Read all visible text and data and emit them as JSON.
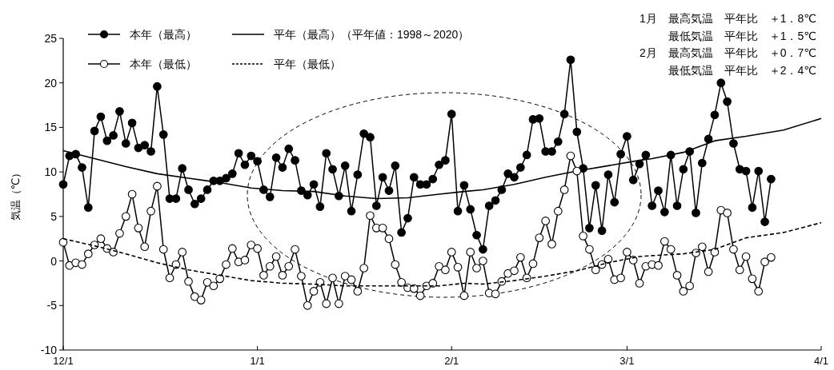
{
  "chart_data": {
    "type": "line",
    "ylabel": "気温（℃）",
    "legend": "top left",
    "x": [
      "2020-12-01",
      "2020-12-02",
      "2020-12-03",
      "2020-12-04",
      "2020-12-05",
      "2020-12-06",
      "2020-12-07",
      "2020-12-08",
      "2020-12-09",
      "2020-12-10",
      "2020-12-11",
      "2020-12-12",
      "2020-12-13",
      "2020-12-14",
      "2020-12-15",
      "2020-12-16",
      "2020-12-17",
      "2020-12-18",
      "2020-12-19",
      "2020-12-20",
      "2020-12-21",
      "2020-12-22",
      "2020-12-23",
      "2020-12-24",
      "2020-12-25",
      "2020-12-26",
      "2020-12-27",
      "2020-12-28",
      "2020-12-29",
      "2020-12-30",
      "2020-12-31",
      "2021-01-01",
      "2021-01-02",
      "2021-01-03",
      "2021-01-04",
      "2021-01-05",
      "2021-01-06",
      "2021-01-07",
      "2021-01-08",
      "2021-01-09",
      "2021-01-10",
      "2021-01-11",
      "2021-01-12",
      "2021-01-13",
      "2021-01-14",
      "2021-01-15",
      "2021-01-16",
      "2021-01-17",
      "2021-01-18",
      "2021-01-19",
      "2021-01-20",
      "2021-01-21",
      "2021-01-22",
      "2021-01-23",
      "2021-01-24",
      "2021-01-25",
      "2021-01-26",
      "2021-01-27",
      "2021-01-28",
      "2021-01-29",
      "2021-01-30",
      "2021-01-31",
      "2021-02-01",
      "2021-02-02",
      "2021-02-03",
      "2021-02-04",
      "2021-02-05",
      "2021-02-06",
      "2021-02-07",
      "2021-02-08",
      "2021-02-09",
      "2021-02-10",
      "2021-02-11",
      "2021-02-12",
      "2021-02-13",
      "2021-02-14",
      "2021-02-15",
      "2021-02-16",
      "2021-02-17",
      "2021-02-18",
      "2021-02-19",
      "2021-02-20",
      "2021-02-21",
      "2021-02-22",
      "2021-02-23",
      "2021-02-24",
      "2021-02-25",
      "2021-02-26",
      "2021-02-27",
      "2021-02-28",
      "2021-03-01",
      "2021-03-02",
      "2021-03-03",
      "2021-03-04",
      "2021-03-05",
      "2021-03-06",
      "2021-03-07",
      "2021-03-08",
      "2021-03-09",
      "2021-03-10",
      "2021-03-11",
      "2021-03-12",
      "2021-03-13",
      "2021-03-14",
      "2021-03-15",
      "2021-03-16",
      "2021-03-17",
      "2021-03-18",
      "2021-03-19",
      "2021-03-20",
      "2021-03-21",
      "2021-03-22",
      "2021-03-23",
      "2021-03-24"
    ],
    "series": [
      {
        "name": "本年（最高）",
        "color": "#000000",
        "marker": "circle",
        "line_style": "solid",
        "values": [
          8.6,
          11.8,
          12.0,
          10.5,
          6.0,
          14.6,
          16.2,
          13.5,
          14.1,
          16.8,
          13.2,
          15.5,
          12.7,
          13.0,
          12.3,
          19.6,
          14.2,
          7.0,
          7.0,
          10.4,
          8.0,
          6.4,
          7.0,
          8.0,
          9.0,
          9.0,
          9.3,
          9.8,
          12.1,
          10.8,
          11.8,
          11.2,
          8.0,
          7.2,
          11.6,
          10.5,
          12.6,
          11.3,
          7.9,
          7.4,
          8.6,
          6.1,
          12.1,
          10.3,
          7.3,
          10.7,
          5.6,
          9.7,
          14.3,
          13.9,
          6.2,
          9.4,
          7.9,
          10.7,
          3.2,
          4.8,
          9.4,
          8.6,
          8.6,
          9.2,
          10.8,
          11.3,
          16.5,
          5.6,
          8.5,
          5.8,
          2.9,
          1.3,
          6.2,
          6.8,
          8.0,
          9.8,
          9.4,
          10.5,
          11.9,
          15.9,
          16.0,
          12.3,
          12.3,
          13.4,
          16.5,
          22.6,
          14.5,
          10.4,
          3.7,
          8.5,
          3.4,
          9.7,
          6.6,
          12.0,
          14.0,
          9.1,
          10.9,
          11.9,
          6.2,
          7.9,
          5.5,
          11.9,
          6.2,
          10.3,
          12.3,
          5.4,
          11.0,
          13.7,
          16.4,
          20.0,
          17.9,
          13.2,
          10.3,
          10.1,
          6.0,
          10.1,
          4.4,
          9.2
        ]
      },
      {
        "name": "平年（最高）（平年値：1998～2020）",
        "color": "#000000",
        "marker": "none",
        "line_style": "solid",
        "x": [
          "2020-12-01",
          "2020-12-06",
          "2020-12-11",
          "2020-12-16",
          "2020-12-21",
          "2020-12-26",
          "2020-12-31",
          "2021-01-05",
          "2021-01-10",
          "2021-01-15",
          "2021-01-20",
          "2021-01-25",
          "2021-01-30",
          "2021-02-03",
          "2021-02-06",
          "2021-02-11",
          "2021-02-16",
          "2021-02-21",
          "2021-02-26",
          "2021-03-03",
          "2021-03-05",
          "2021-03-10",
          "2021-03-15",
          "2021-03-20",
          "2021-03-26",
          "2021-04-01"
        ],
        "values": [
          12.4,
          11.5,
          10.6,
          9.8,
          9.3,
          8.8,
          8.2,
          7.9,
          7.8,
          7.3,
          7.0,
          7.1,
          7.5,
          7.8,
          8.0,
          8.6,
          9.4,
          10.1,
          10.7,
          11.3,
          11.5,
          12.2,
          13.5,
          14.0,
          14.7,
          16.0
        ]
      },
      {
        "name": "本年（最低）",
        "color": "#ffffff",
        "marker": "circle",
        "line_style": "solid",
        "values": [
          2.1,
          -0.5,
          -0.2,
          -0.4,
          0.8,
          1.8,
          2.5,
          1.4,
          1.0,
          3.1,
          5.0,
          7.5,
          3.7,
          1.6,
          5.6,
          8.4,
          1.3,
          -1.9,
          -0.4,
          1.0,
          -2.3,
          -4.0,
          -4.4,
          -2.4,
          -2.8,
          -2.0,
          -0.4,
          1.4,
          -0.1,
          0.1,
          1.8,
          1.4,
          -1.6,
          -0.6,
          0.5,
          -1.6,
          -0.6,
          1.3,
          -1.7,
          -5.0,
          -3.4,
          -2.4,
          -4.8,
          -1.9,
          -4.8,
          -1.7,
          -2.1,
          -3.4,
          -0.8,
          5.1,
          3.7,
          3.7,
          2.5,
          -0.4,
          -2.4,
          -3.0,
          -3.1,
          -3.9,
          -2.8,
          -2.5,
          -0.6,
          -1.0,
          1.0,
          -0.7,
          -3.9,
          1.0,
          -0.8,
          0.0,
          -3.6,
          -3.7,
          -2.3,
          -1.4,
          -1.1,
          0.4,
          -1.9,
          -0.3,
          2.6,
          4.5,
          1.9,
          5.6,
          8.0,
          11.8,
          10.1,
          2.8,
          1.3,
          -1.0,
          -0.4,
          0.2,
          -2.1,
          -1.9,
          1.0,
          0.1,
          -2.5,
          -0.6,
          -0.4,
          -0.5,
          2.2,
          1.3,
          -1.6,
          -3.4,
          -2.8,
          0.9,
          1.6,
          -1.2,
          1.0,
          5.7,
          5.4,
          1.3,
          -1.0,
          0.5,
          -2.0,
          -3.4,
          -0.1,
          0.4
        ]
      },
      {
        "name": "平年（最低）",
        "color": "#000000",
        "marker": "none",
        "line_style": "dashed",
        "x": [
          "2020-12-01",
          "2020-12-06",
          "2020-12-11",
          "2020-12-16",
          "2020-12-21",
          "2020-12-26",
          "2020-12-31",
          "2021-01-05",
          "2021-01-10",
          "2021-01-15",
          "2021-01-20",
          "2021-01-25",
          "2021-01-30",
          "2021-02-03",
          "2021-02-06",
          "2021-02-11",
          "2021-02-16",
          "2021-02-21",
          "2021-02-26",
          "2021-03-03",
          "2021-03-05",
          "2021-03-10",
          "2021-03-15",
          "2021-03-20",
          "2021-03-26",
          "2021-04-01"
        ],
        "values": [
          2.5,
          1.7,
          0.8,
          -0.2,
          -1.0,
          -1.6,
          -2.2,
          -2.5,
          -2.6,
          -2.8,
          -2.8,
          -2.8,
          -2.8,
          -2.5,
          -2.6,
          -2.2,
          -1.7,
          -1.1,
          -0.2,
          0.5,
          0.6,
          0.8,
          1.3,
          2.6,
          3.2,
          4.3
        ]
      }
    ],
    "xlim": [
      "2020-12-01",
      "2021-04-01"
    ],
    "xticks": [
      {
        "value": "2020-12-01",
        "label": "12/1"
      },
      {
        "value": "2021-01-01",
        "label": "1/1"
      },
      {
        "value": "2021-02-01",
        "label": "2/1"
      },
      {
        "value": "2021-03-01",
        "label": "3/1"
      },
      {
        "value": "2021-04-01",
        "label": "4/1"
      }
    ],
    "ylim": [
      -10,
      25
    ],
    "yticks": [
      -10,
      -5,
      0,
      5,
      10,
      15,
      20,
      25
    ],
    "annotations": [
      "1月　最高気温　平年比　＋1．8℃",
      "最低気温　平年比　＋1．5℃",
      "2月　最高気温　平年比　＋0．7℃",
      "最低気温　平年比　＋2．4℃"
    ]
  }
}
